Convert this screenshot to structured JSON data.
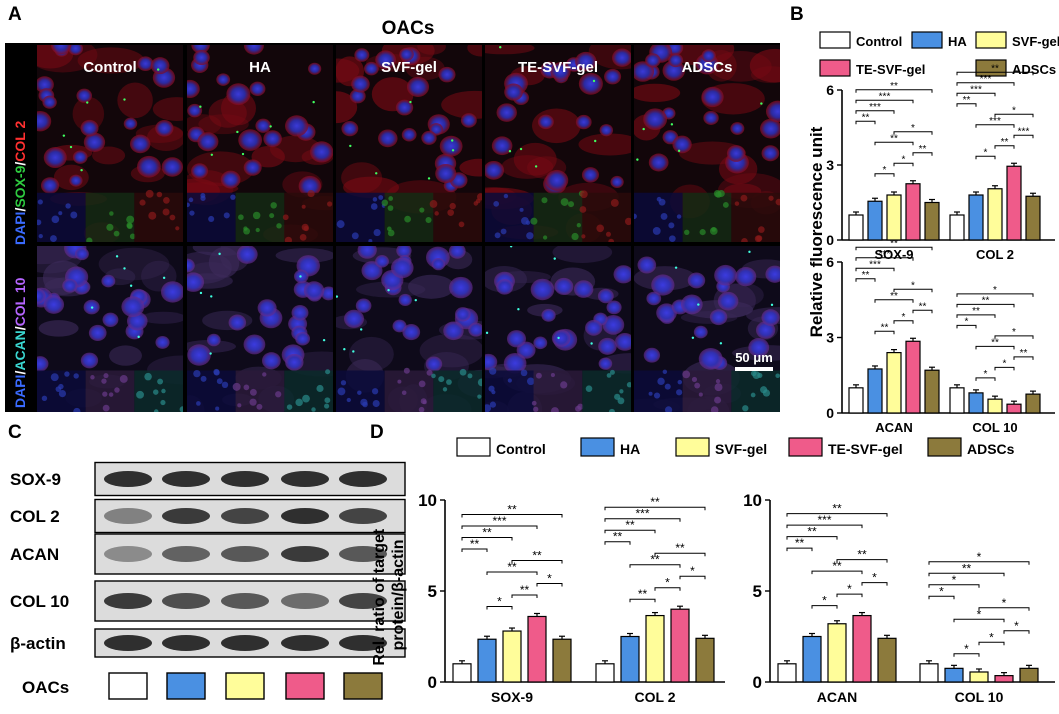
{
  "colors": {
    "control": "#ffffff",
    "ha": "#4a90e2",
    "svf_gel": "#fffd9a",
    "te_svf_gel": "#ef5b8a",
    "adscs": "#8c7a3c"
  },
  "panels": {
    "a": "A",
    "b": "B",
    "c": "C",
    "d": "D"
  },
  "micro": {
    "title": "OACs",
    "groups": [
      "Control",
      "HA",
      "SVF-gel",
      "TE-SVF-gel",
      "ADSCs"
    ],
    "row1_label": {
      "dapi": "DAPI",
      "sep1": "/",
      "m1": "SOX-9",
      "sep2": "/",
      "m2": "COL 2"
    },
    "row2_label": {
      "dapi": "DAPI",
      "sep1": "/",
      "m1": "ACAN",
      "sep2": "/",
      "m2": "COL 10"
    },
    "scale_bar": "50 μm"
  },
  "legend": [
    "Control",
    "HA",
    "SVF-gel",
    "TE-SVF-gel",
    "ADSCs"
  ],
  "western": {
    "proteins": [
      "SOX-9",
      "COL 2",
      "ACAN",
      "COL 10",
      "β-actin"
    ],
    "row_label": "OACs"
  },
  "chart_data": [
    {
      "type": "bar",
      "panel": "B-top",
      "categories": [
        "SOX-9",
        "COL 2"
      ],
      "ylabel": "Relative fluorescence unit",
      "ylim": [
        0,
        6
      ],
      "yticks": [
        "0",
        "3",
        "6"
      ],
      "series": [
        {
          "name": "Control",
          "values": [
            1.0,
            1.0
          ]
        },
        {
          "name": "HA",
          "values": [
            1.55,
            1.8
          ]
        },
        {
          "name": "SVF-gel",
          "values": [
            1.8,
            2.05
          ]
        },
        {
          "name": "TE-SVF-gel",
          "values": [
            2.25,
            2.95
          ]
        },
        {
          "name": "ADSCs",
          "values": [
            1.5,
            1.75
          ]
        }
      ],
      "sig": [
        {
          "c": 0,
          "a": 0,
          "b": 1,
          "t": "**"
        },
        {
          "c": 0,
          "a": 0,
          "b": 2,
          "t": "***"
        },
        {
          "c": 0,
          "a": 0,
          "b": 3,
          "t": "***"
        },
        {
          "c": 0,
          "a": 0,
          "b": 4,
          "t": "**"
        },
        {
          "c": 0,
          "a": 1,
          "b": 2,
          "t": "*"
        },
        {
          "c": 0,
          "a": 1,
          "b": 3,
          "t": "**"
        },
        {
          "c": 0,
          "a": 2,
          "b": 3,
          "t": "*"
        },
        {
          "c": 0,
          "a": 3,
          "b": 4,
          "t": "**"
        },
        {
          "c": 0,
          "a": 2,
          "b": 4,
          "t": "*"
        },
        {
          "c": 1,
          "a": 0,
          "b": 1,
          "t": "**"
        },
        {
          "c": 1,
          "a": 0,
          "b": 2,
          "t": "***"
        },
        {
          "c": 1,
          "a": 0,
          "b": 3,
          "t": "***"
        },
        {
          "c": 1,
          "a": 0,
          "b": 4,
          "t": "**"
        },
        {
          "c": 1,
          "a": 1,
          "b": 2,
          "t": "*"
        },
        {
          "c": 1,
          "a": 1,
          "b": 3,
          "t": "***"
        },
        {
          "c": 1,
          "a": 2,
          "b": 3,
          "t": "**"
        },
        {
          "c": 1,
          "a": 3,
          "b": 4,
          "t": "***"
        },
        {
          "c": 1,
          "a": 2,
          "b": 4,
          "t": "*"
        }
      ]
    },
    {
      "type": "bar",
      "panel": "B-bottom",
      "categories": [
        "ACAN",
        "COL 10"
      ],
      "ylabel": "Relative fluorescence unit",
      "ylim": [
        0,
        6
      ],
      "yticks": [
        "0",
        "3",
        "6"
      ],
      "series": [
        {
          "name": "Control",
          "values": [
            1.0,
            1.0
          ]
        },
        {
          "name": "HA",
          "values": [
            1.75,
            0.8
          ]
        },
        {
          "name": "SVF-gel",
          "values": [
            2.4,
            0.55
          ]
        },
        {
          "name": "TE-SVF-gel",
          "values": [
            2.85,
            0.35
          ]
        },
        {
          "name": "ADSCs",
          "values": [
            1.7,
            0.75
          ]
        }
      ],
      "sig": [
        {
          "c": 0,
          "a": 0,
          "b": 1,
          "t": "**"
        },
        {
          "c": 0,
          "a": 0,
          "b": 2,
          "t": "***"
        },
        {
          "c": 0,
          "a": 0,
          "b": 3,
          "t": "***"
        },
        {
          "c": 0,
          "a": 0,
          "b": 4,
          "t": "**"
        },
        {
          "c": 0,
          "a": 1,
          "b": 2,
          "t": "**"
        },
        {
          "c": 0,
          "a": 1,
          "b": 3,
          "t": "**"
        },
        {
          "c": 0,
          "a": 2,
          "b": 3,
          "t": "*"
        },
        {
          "c": 0,
          "a": 3,
          "b": 4,
          "t": "**"
        },
        {
          "c": 0,
          "a": 2,
          "b": 4,
          "t": "*"
        },
        {
          "c": 1,
          "a": 0,
          "b": 1,
          "t": "*"
        },
        {
          "c": 1,
          "a": 0,
          "b": 2,
          "t": "**"
        },
        {
          "c": 1,
          "a": 0,
          "b": 3,
          "t": "**"
        },
        {
          "c": 1,
          "a": 0,
          "b": 4,
          "t": "*"
        },
        {
          "c": 1,
          "a": 1,
          "b": 2,
          "t": "*"
        },
        {
          "c": 1,
          "a": 1,
          "b": 3,
          "t": "**"
        },
        {
          "c": 1,
          "a": 2,
          "b": 3,
          "t": "*"
        },
        {
          "c": 1,
          "a": 3,
          "b": 4,
          "t": "**"
        },
        {
          "c": 1,
          "a": 2,
          "b": 4,
          "t": "*"
        }
      ]
    },
    {
      "type": "bar",
      "panel": "D-left",
      "categories": [
        "SOX-9",
        "COL 2"
      ],
      "ylabel": "Rel. ratio of target protein/β-actin",
      "ylim": [
        0,
        10
      ],
      "yticks": [
        "0",
        "5",
        "10"
      ],
      "series": [
        {
          "name": "Control",
          "values": [
            1.0,
            1.0
          ]
        },
        {
          "name": "HA",
          "values": [
            2.35,
            2.5
          ]
        },
        {
          "name": "SVF-gel",
          "values": [
            2.8,
            3.65
          ]
        },
        {
          "name": "TE-SVF-gel",
          "values": [
            3.6,
            4.0
          ]
        },
        {
          "name": "ADSCs",
          "values": [
            2.35,
            2.4
          ]
        }
      ],
      "sig": [
        {
          "c": 0,
          "a": 0,
          "b": 1,
          "t": "**"
        },
        {
          "c": 0,
          "a": 0,
          "b": 2,
          "t": "**"
        },
        {
          "c": 0,
          "a": 0,
          "b": 3,
          "t": "***"
        },
        {
          "c": 0,
          "a": 0,
          "b": 4,
          "t": "**"
        },
        {
          "c": 0,
          "a": 1,
          "b": 2,
          "t": "*"
        },
        {
          "c": 0,
          "a": 1,
          "b": 3,
          "t": "**"
        },
        {
          "c": 0,
          "a": 2,
          "b": 3,
          "t": "**"
        },
        {
          "c": 0,
          "a": 3,
          "b": 4,
          "t": "*"
        },
        {
          "c": 0,
          "a": 2,
          "b": 4,
          "t": "**"
        },
        {
          "c": 1,
          "a": 0,
          "b": 1,
          "t": "**"
        },
        {
          "c": 1,
          "a": 0,
          "b": 2,
          "t": "**"
        },
        {
          "c": 1,
          "a": 0,
          "b": 3,
          "t": "***"
        },
        {
          "c": 1,
          "a": 0,
          "b": 4,
          "t": "**"
        },
        {
          "c": 1,
          "a": 1,
          "b": 2,
          "t": "**"
        },
        {
          "c": 1,
          "a": 1,
          "b": 3,
          "t": "**"
        },
        {
          "c": 1,
          "a": 2,
          "b": 3,
          "t": "*"
        },
        {
          "c": 1,
          "a": 3,
          "b": 4,
          "t": "*"
        },
        {
          "c": 1,
          "a": 2,
          "b": 4,
          "t": "**"
        }
      ]
    },
    {
      "type": "bar",
      "panel": "D-right",
      "categories": [
        "ACAN",
        "COL 10"
      ],
      "ylabel": "",
      "ylim": [
        0,
        10
      ],
      "yticks": [
        "0",
        "5",
        "10"
      ],
      "series": [
        {
          "name": "Control",
          "values": [
            1.0,
            1.0
          ]
        },
        {
          "name": "HA",
          "values": [
            2.5,
            0.75
          ]
        },
        {
          "name": "SVF-gel",
          "values": [
            3.2,
            0.55
          ]
        },
        {
          "name": "TE-SVF-gel",
          "values": [
            3.65,
            0.35
          ]
        },
        {
          "name": "ADSCs",
          "values": [
            2.4,
            0.75
          ]
        }
      ],
      "sig": [
        {
          "c": 0,
          "a": 0,
          "b": 1,
          "t": "**"
        },
        {
          "c": 0,
          "a": 0,
          "b": 2,
          "t": "**"
        },
        {
          "c": 0,
          "a": 0,
          "b": 3,
          "t": "***"
        },
        {
          "c": 0,
          "a": 0,
          "b": 4,
          "t": "**"
        },
        {
          "c": 0,
          "a": 1,
          "b": 2,
          "t": "*"
        },
        {
          "c": 0,
          "a": 1,
          "b": 3,
          "t": "**"
        },
        {
          "c": 0,
          "a": 2,
          "b": 3,
          "t": "*"
        },
        {
          "c": 0,
          "a": 3,
          "b": 4,
          "t": "*"
        },
        {
          "c": 0,
          "a": 2,
          "b": 4,
          "t": "**"
        },
        {
          "c": 1,
          "a": 0,
          "b": 1,
          "t": "*"
        },
        {
          "c": 1,
          "a": 0,
          "b": 2,
          "t": "*"
        },
        {
          "c": 1,
          "a": 0,
          "b": 3,
          "t": "**"
        },
        {
          "c": 1,
          "a": 0,
          "b": 4,
          "t": "*"
        },
        {
          "c": 1,
          "a": 1,
          "b": 2,
          "t": "*"
        },
        {
          "c": 1,
          "a": 1,
          "b": 3,
          "t": "*"
        },
        {
          "c": 1,
          "a": 2,
          "b": 3,
          "t": "*"
        },
        {
          "c": 1,
          "a": 3,
          "b": 4,
          "t": "*"
        },
        {
          "c": 1,
          "a": 2,
          "b": 4,
          "t": "*"
        }
      ]
    }
  ]
}
